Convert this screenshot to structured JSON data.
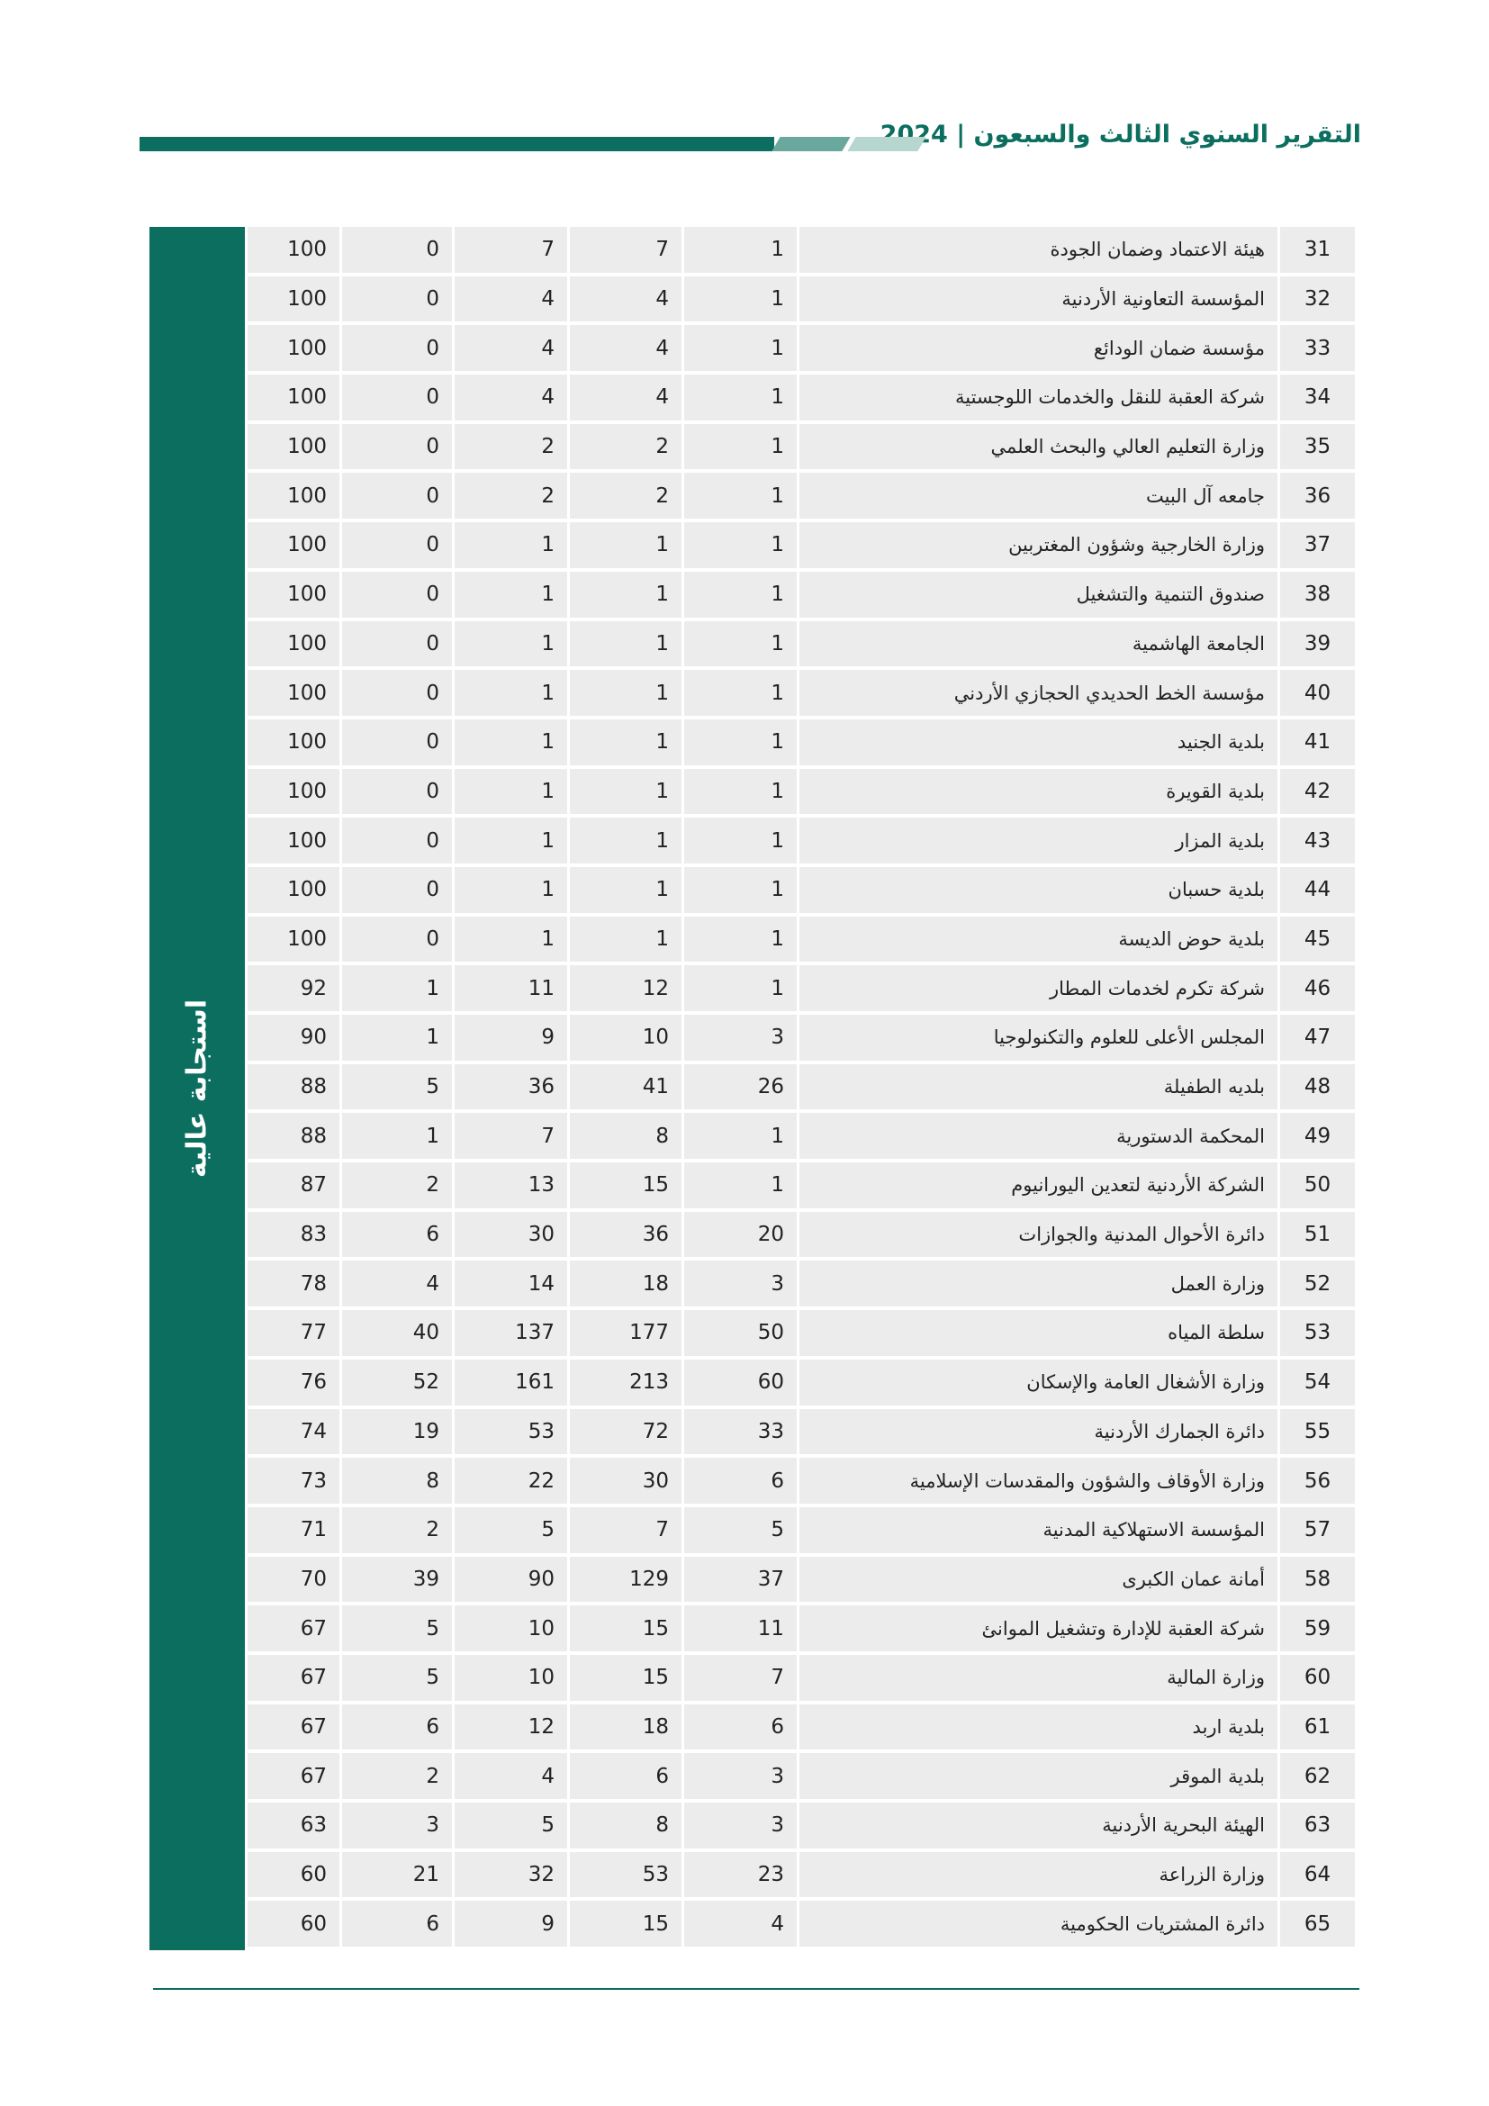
{
  "header": {
    "title": "التقرير السنوي الثالث والسبعون | 2024",
    "accent": "#0b6e5f"
  },
  "sidebar": {
    "label": "استجابة عالية"
  },
  "rows": [
    {
      "idx": "31",
      "name": "هيئة الاعتماد وضمان الجودة",
      "v5": "1",
      "v4": "7",
      "v3": "7",
      "v2": "0",
      "v1": "100"
    },
    {
      "idx": "32",
      "name": "المؤسسة التعاونية الأردنية",
      "v5": "1",
      "v4": "4",
      "v3": "4",
      "v2": "0",
      "v1": "100"
    },
    {
      "idx": "33",
      "name": "مؤسسة ضمان الودائع",
      "v5": "1",
      "v4": "4",
      "v3": "4",
      "v2": "0",
      "v1": "100"
    },
    {
      "idx": "34",
      "name": "شركة العقبة للنقل والخدمات اللوجستية",
      "v5": "1",
      "v4": "4",
      "v3": "4",
      "v2": "0",
      "v1": "100"
    },
    {
      "idx": "35",
      "name": "وزارة التعليم العالي والبحث العلمي",
      "v5": "1",
      "v4": "2",
      "v3": "2",
      "v2": "0",
      "v1": "100"
    },
    {
      "idx": "36",
      "name": "جامعه آل البيت",
      "v5": "1",
      "v4": "2",
      "v3": "2",
      "v2": "0",
      "v1": "100"
    },
    {
      "idx": "37",
      "name": "وزارة الخارجية وشؤون المغتربين",
      "v5": "1",
      "v4": "1",
      "v3": "1",
      "v2": "0",
      "v1": "100"
    },
    {
      "idx": "38",
      "name": "صندوق التنمية والتشغيل",
      "v5": "1",
      "v4": "1",
      "v3": "1",
      "v2": "0",
      "v1": "100"
    },
    {
      "idx": "39",
      "name": "الجامعة الهاشمية",
      "v5": "1",
      "v4": "1",
      "v3": "1",
      "v2": "0",
      "v1": "100"
    },
    {
      "idx": "40",
      "name": "مؤسسة الخط الحديدي الحجازي الأردني",
      "v5": "1",
      "v4": "1",
      "v3": "1",
      "v2": "0",
      "v1": "100"
    },
    {
      "idx": "41",
      "name": "بلدية الجنيد",
      "v5": "1",
      "v4": "1",
      "v3": "1",
      "v2": "0",
      "v1": "100"
    },
    {
      "idx": "42",
      "name": "بلدية القويرة",
      "v5": "1",
      "v4": "1",
      "v3": "1",
      "v2": "0",
      "v1": "100"
    },
    {
      "idx": "43",
      "name": "بلدية المزار",
      "v5": "1",
      "v4": "1",
      "v3": "1",
      "v2": "0",
      "v1": "100"
    },
    {
      "idx": "44",
      "name": "بلدية حسبان",
      "v5": "1",
      "v4": "1",
      "v3": "1",
      "v2": "0",
      "v1": "100"
    },
    {
      "idx": "45",
      "name": "بلدية حوض الديسة",
      "v5": "1",
      "v4": "1",
      "v3": "1",
      "v2": "0",
      "v1": "100"
    },
    {
      "idx": "46",
      "name": "شركة تكرم لخدمات المطار",
      "v5": "1",
      "v4": "12",
      "v3": "11",
      "v2": "1",
      "v1": "92"
    },
    {
      "idx": "47",
      "name": "المجلس الأعلى للعلوم والتكنولوجيا",
      "v5": "3",
      "v4": "10",
      "v3": "9",
      "v2": "1",
      "v1": "90"
    },
    {
      "idx": "48",
      "name": "بلديه الطفيلة",
      "v5": "26",
      "v4": "41",
      "v3": "36",
      "v2": "5",
      "v1": "88"
    },
    {
      "idx": "49",
      "name": "المحكمة الدستورية",
      "v5": "1",
      "v4": "8",
      "v3": "7",
      "v2": "1",
      "v1": "88"
    },
    {
      "idx": "50",
      "name": "الشركة الأردنية لتعدين اليورانيوم",
      "v5": "1",
      "v4": "15",
      "v3": "13",
      "v2": "2",
      "v1": "87"
    },
    {
      "idx": "51",
      "name": "دائرة الأحوال المدنية والجوازات",
      "v5": "20",
      "v4": "36",
      "v3": "30",
      "v2": "6",
      "v1": "83"
    },
    {
      "idx": "52",
      "name": "وزارة العمل",
      "v5": "3",
      "v4": "18",
      "v3": "14",
      "v2": "4",
      "v1": "78"
    },
    {
      "idx": "53",
      "name": "سلطة المياه",
      "v5": "50",
      "v4": "177",
      "v3": "137",
      "v2": "40",
      "v1": "77"
    },
    {
      "idx": "54",
      "name": "وزارة الأشغال العامة والإسكان",
      "v5": "60",
      "v4": "213",
      "v3": "161",
      "v2": "52",
      "v1": "76"
    },
    {
      "idx": "55",
      "name": "دائرة الجمارك الأردنية",
      "v5": "33",
      "v4": "72",
      "v3": "53",
      "v2": "19",
      "v1": "74"
    },
    {
      "idx": "56",
      "name": "وزارة الأوقاف والشؤون والمقدسات الإسلامية",
      "v5": "6",
      "v4": "30",
      "v3": "22",
      "v2": "8",
      "v1": "73"
    },
    {
      "idx": "57",
      "name": "المؤسسة الاستهلاكية المدنية",
      "v5": "5",
      "v4": "7",
      "v3": "5",
      "v2": "2",
      "v1": "71"
    },
    {
      "idx": "58",
      "name": "أمانة عمان الكبرى",
      "v5": "37",
      "v4": "129",
      "v3": "90",
      "v2": "39",
      "v1": "70"
    },
    {
      "idx": "59",
      "name": "شركة العقبة للإدارة وتشغيل الموانئ",
      "v5": "11",
      "v4": "15",
      "v3": "10",
      "v2": "5",
      "v1": "67"
    },
    {
      "idx": "60",
      "name": "وزارة المالية",
      "v5": "7",
      "v4": "15",
      "v3": "10",
      "v2": "5",
      "v1": "67"
    },
    {
      "idx": "61",
      "name": "بلدية اربد",
      "v5": "6",
      "v4": "18",
      "v3": "12",
      "v2": "6",
      "v1": "67"
    },
    {
      "idx": "62",
      "name": "بلدية الموقر",
      "v5": "3",
      "v4": "6",
      "v3": "4",
      "v2": "2",
      "v1": "67"
    },
    {
      "idx": "63",
      "name": "الهيئة البحرية الأردنية",
      "v5": "3",
      "v4": "8",
      "v3": "5",
      "v2": "3",
      "v1": "63"
    },
    {
      "idx": "64",
      "name": "وزارة الزراعة",
      "v5": "23",
      "v4": "53",
      "v3": "32",
      "v2": "21",
      "v1": "60"
    },
    {
      "idx": "65",
      "name": "دائرة المشتريات الحكومية",
      "v5": "4",
      "v4": "15",
      "v3": "9",
      "v2": "6",
      "v1": "60"
    }
  ]
}
